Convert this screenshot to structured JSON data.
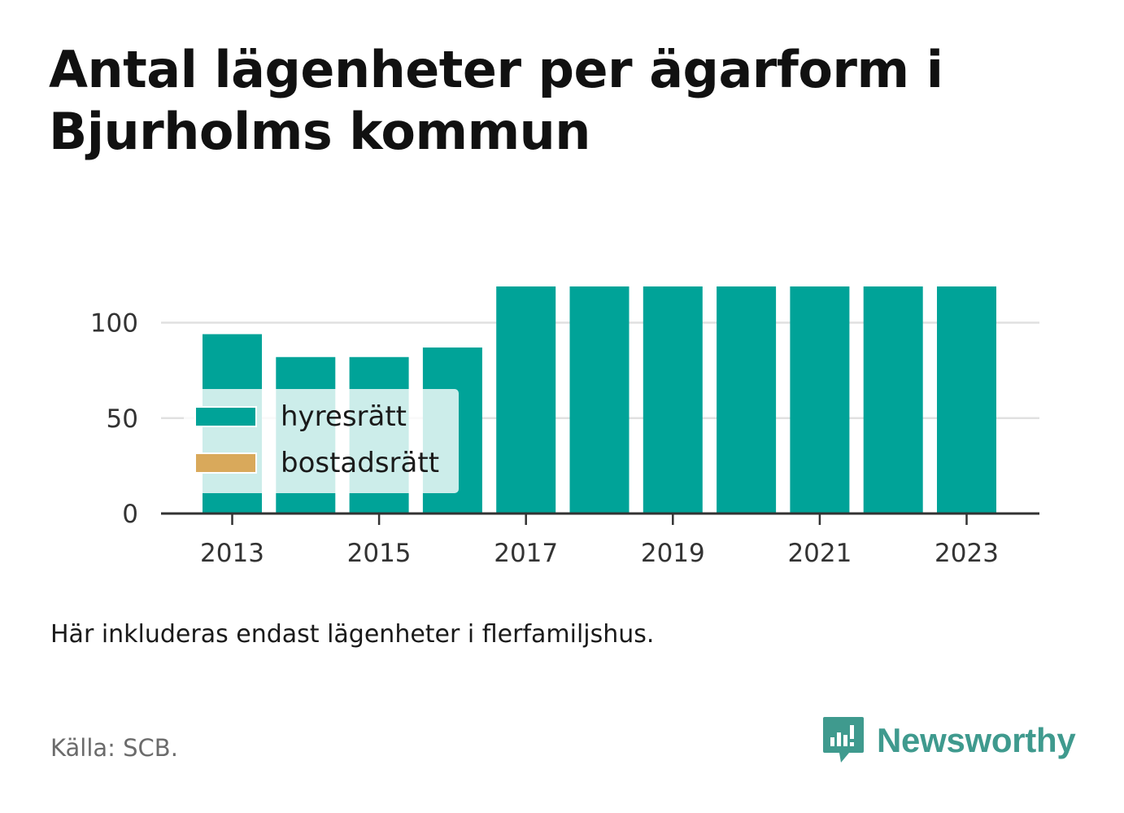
{
  "title": "Antal lägenheter per ägarform i Bjurholms kommun",
  "caption": "Här inkluderas endast lägenheter i flerfamiljshus.",
  "source": "Källa: SCB.",
  "brand": {
    "name": "Newsworthy",
    "color": "#3f9a8e",
    "icon": "bar-chart-speech-bubble-icon"
  },
  "colors": {
    "hyresratt": "#00a398",
    "bostadsratt": "#d9a95b",
    "axis": "#333333",
    "grid": "#e0e0e0"
  },
  "chart_data": {
    "type": "bar",
    "stacked": true,
    "categories": [
      "2013",
      "2014",
      "2015",
      "2016",
      "2017",
      "2018",
      "2019",
      "2020",
      "2021",
      "2022",
      "2023"
    ],
    "series": [
      {
        "name": "hyresrätt",
        "values": [
          94,
          82,
          82,
          87,
          119,
          119,
          119,
          119,
          119,
          119,
          119
        ]
      },
      {
        "name": "bostadsrätt",
        "values": [
          0,
          0,
          0,
          0,
          0,
          0,
          0,
          0,
          0,
          0,
          0
        ]
      }
    ],
    "xticks": [
      "2013",
      "2015",
      "2017",
      "2019",
      "2021",
      "2023"
    ],
    "yticks": [
      0,
      50,
      100
    ],
    "ylim": [
      0,
      119
    ],
    "grid": true,
    "legend": "inside-bottom-left"
  }
}
